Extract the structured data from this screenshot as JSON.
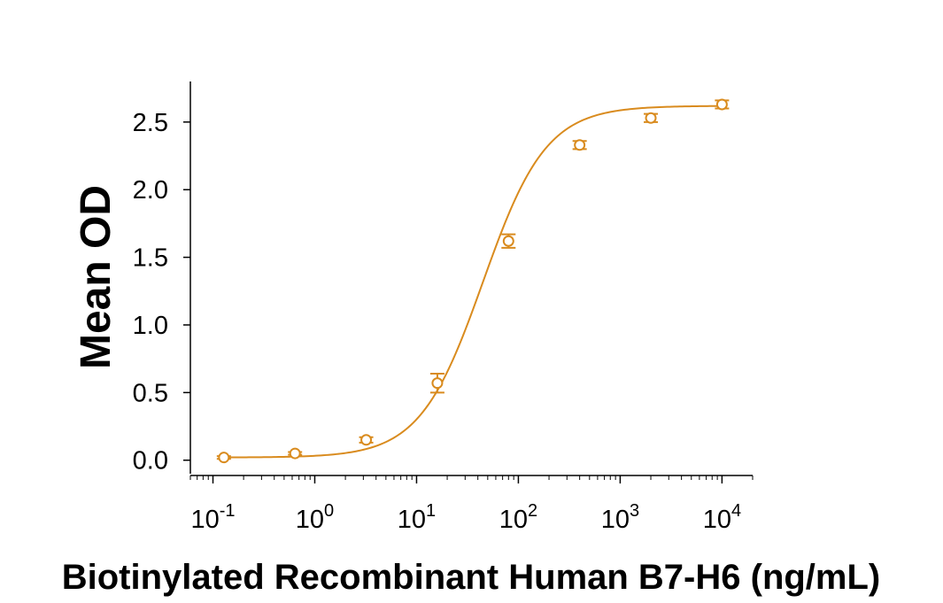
{
  "chart_data": {
    "type": "scatter",
    "title": "",
    "xlabel": "Biotinylated Recombinant Human B7-H6 (ng/mL)",
    "ylabel": "Mean OD",
    "x_scale": "log",
    "xlim": [
      0.06,
      20000
    ],
    "ylim": [
      -0.1,
      2.8
    ],
    "x_ticks": [
      0.1,
      1,
      10,
      100,
      1000,
      10000
    ],
    "x_tick_labels": [
      {
        "base": "10",
        "exp": "-1"
      },
      {
        "base": "10",
        "exp": "0"
      },
      {
        "base": "10",
        "exp": "1"
      },
      {
        "base": "10",
        "exp": "2"
      },
      {
        "base": "10",
        "exp": "3"
      },
      {
        "base": "10",
        "exp": "4"
      }
    ],
    "y_ticks": [
      0.0,
      0.5,
      1.0,
      1.5,
      2.0,
      2.5
    ],
    "y_tick_labels": [
      "0.0",
      "0.5",
      "1.0",
      "1.5",
      "2.0",
      "2.5"
    ],
    "grid": false,
    "legend": "none",
    "color": "#d98b1e",
    "series": [
      {
        "points": [
          {
            "x": 0.128,
            "y": 0.02,
            "err": 0.01
          },
          {
            "x": 0.64,
            "y": 0.05,
            "err": 0.01
          },
          {
            "x": 3.2,
            "y": 0.15,
            "err": 0.02
          },
          {
            "x": 16,
            "y": 0.57,
            "err": 0.07
          },
          {
            "x": 80,
            "y": 1.62,
            "err": 0.05
          },
          {
            "x": 400,
            "y": 2.33,
            "err": 0.03
          },
          {
            "x": 2000,
            "y": 2.53,
            "err": 0.03
          },
          {
            "x": 10000,
            "y": 2.63,
            "err": 0.03
          }
        ],
        "fit": {
          "model": "4PL",
          "bottom": 0.02,
          "top": 2.62,
          "ec50": 45,
          "hill": 1.4
        }
      }
    ]
  }
}
